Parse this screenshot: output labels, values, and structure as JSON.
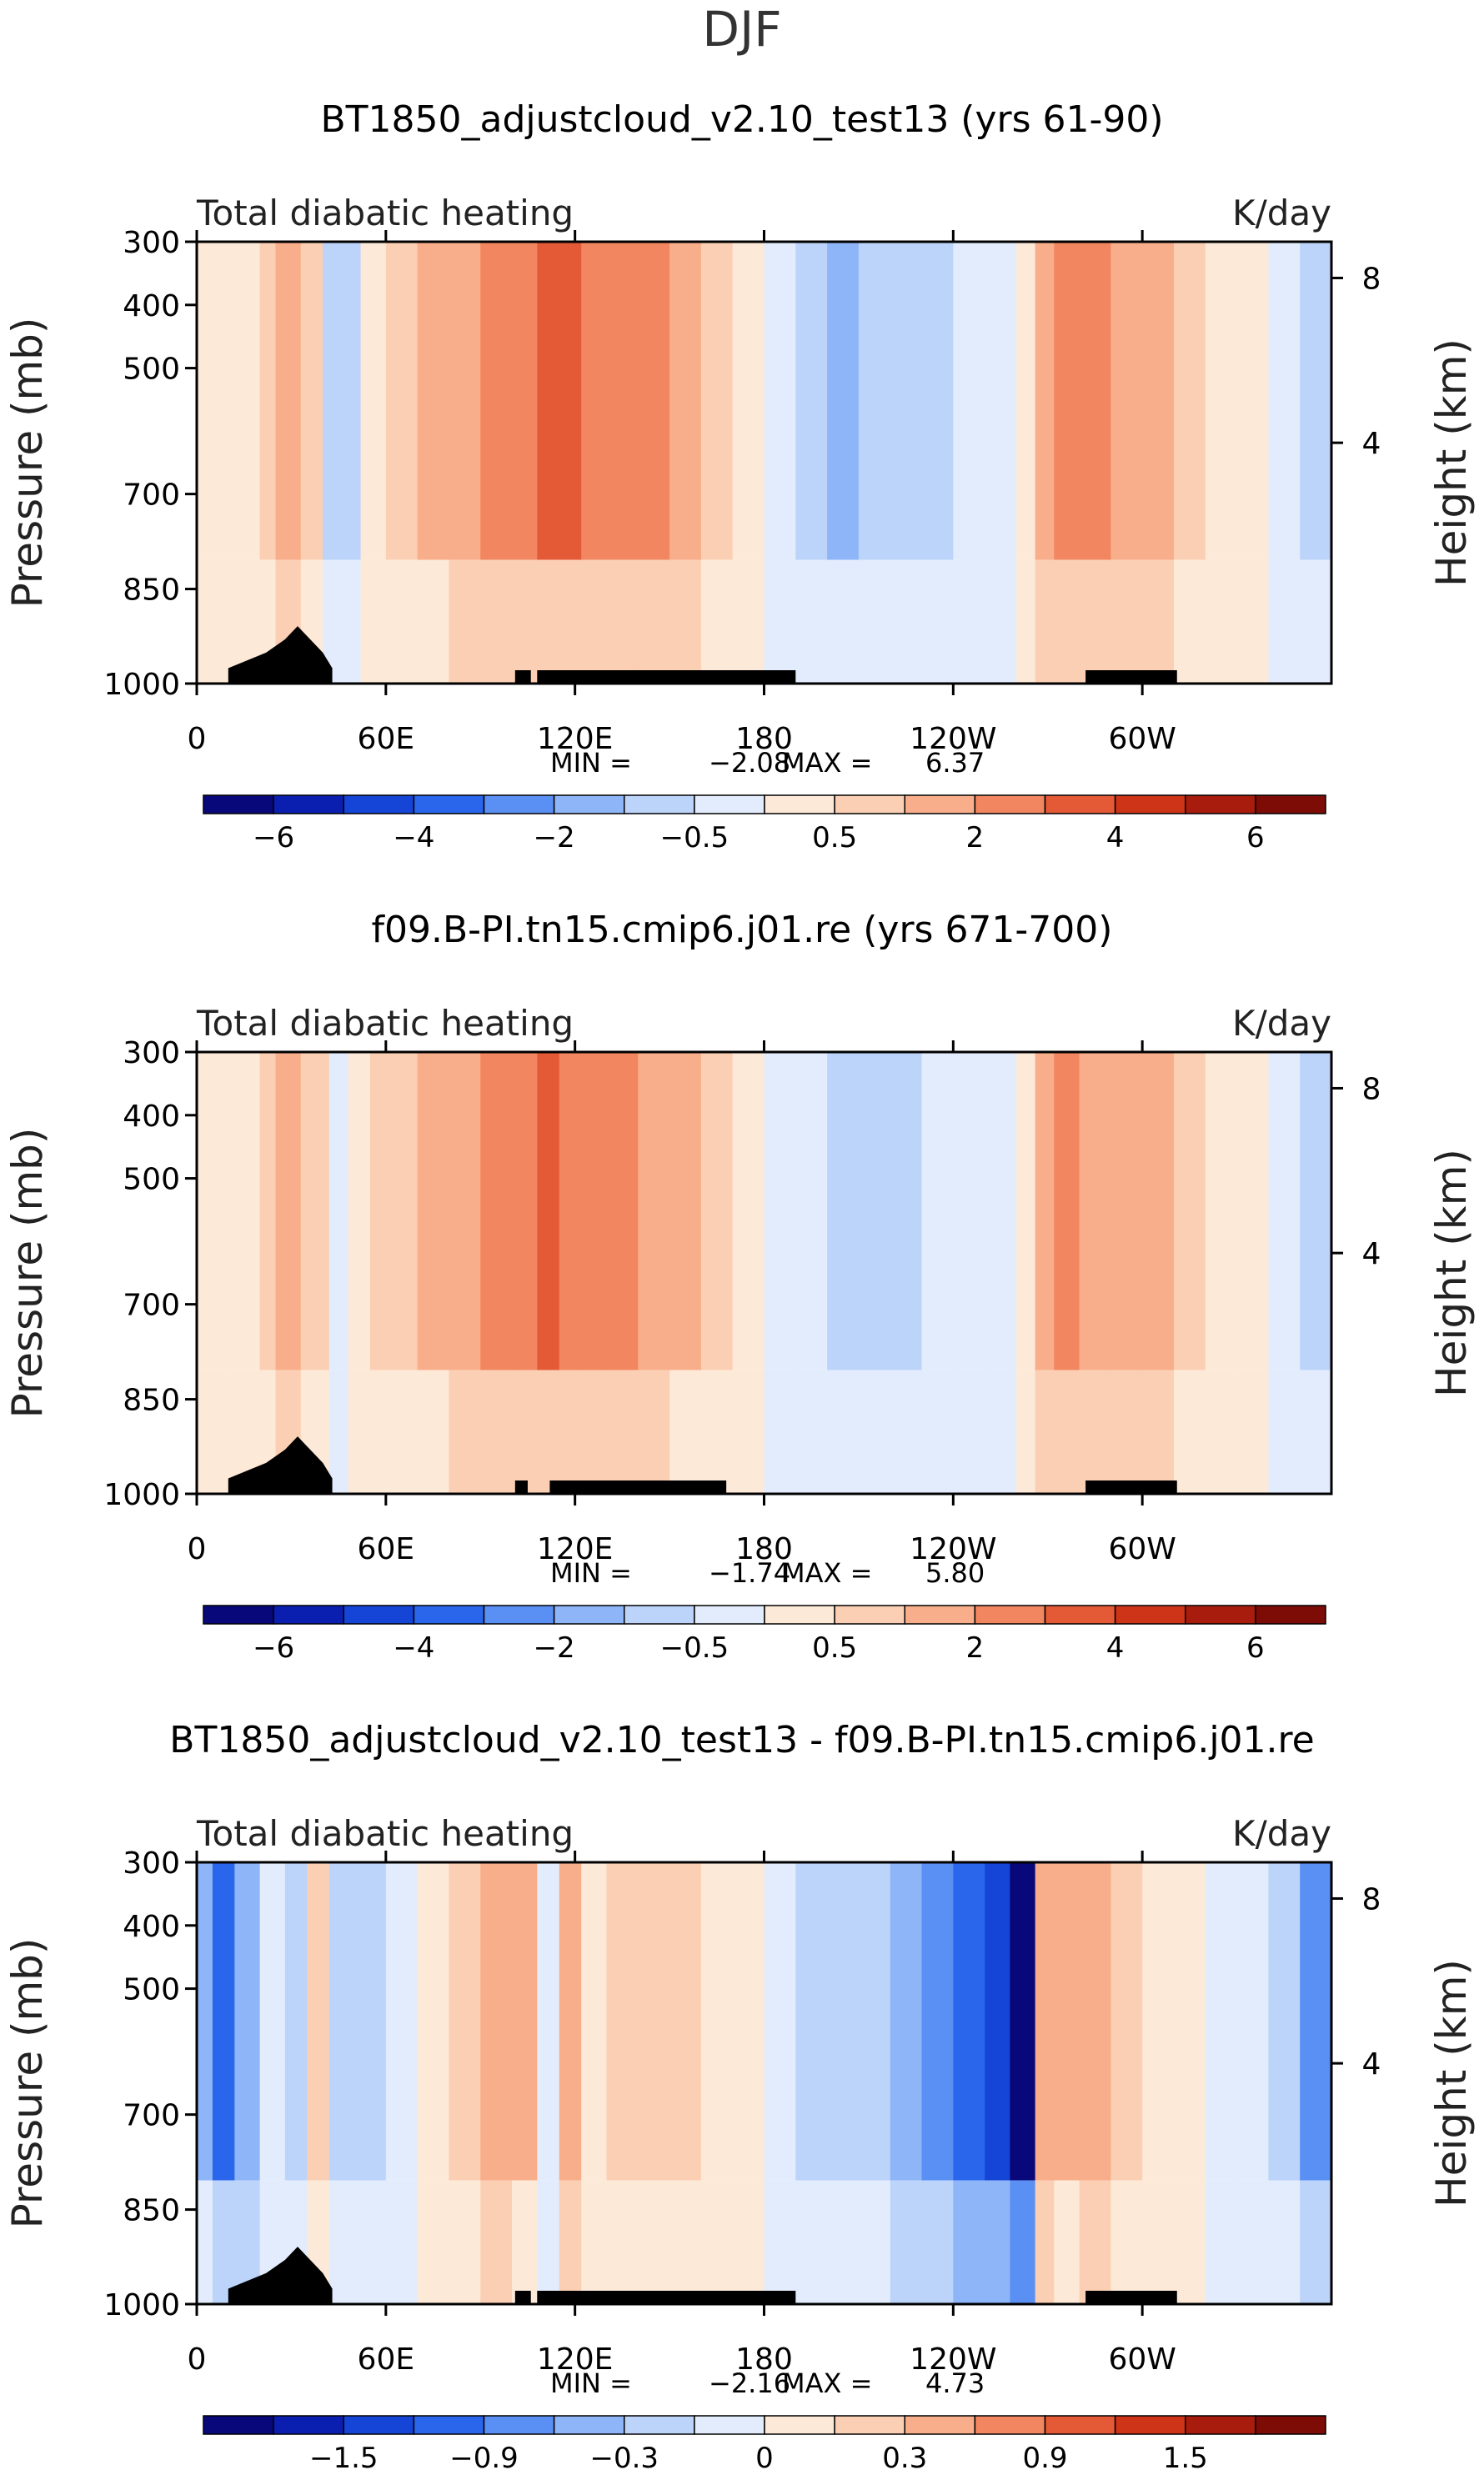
{
  "figure": {
    "season": "DJF"
  },
  "chart_data": [
    {
      "type": "heatmap",
      "title": "BT1850_adjustcloud_v2.10_test13 (yrs 61-90)",
      "subtitle_left": "Total diabatic heating",
      "subtitle_right": "K/day",
      "ylabel": "Pressure (mb)",
      "ylabel_right": "Height (km)",
      "x_ticks": [
        "0",
        "60E",
        "120E",
        "180",
        "120W",
        "60W"
      ],
      "y_ticks": [
        "300",
        "400",
        "500",
        "700",
        "850",
        "1000"
      ],
      "y_ticks_right": [
        "8",
        "4"
      ],
      "stats": {
        "min_label": "MIN =",
        "min": "−2.08",
        "max_label": "MAX =",
        "max": "6.37"
      },
      "colorbar_labels": [
        "−6",
        "−4",
        "−2",
        "−0.5",
        "0.5",
        "2",
        "4",
        "6"
      ],
      "colorbar_colors": [
        "#08087a",
        "#0a1fb0",
        "#1545d6",
        "#2a66ec",
        "#5a8ff4",
        "#8eb5f7",
        "#bcd4fa",
        "#e2ecfc",
        "#fde9d8",
        "#fbcfb3",
        "#f8ae8a",
        "#f18660",
        "#e55a36",
        "#cd3418",
        "#a81c0d",
        "#7d0c06"
      ],
      "field": [
        [
          0.0,
          0.3
        ],
        [
          10,
          0.6
        ],
        [
          20,
          1.2
        ],
        [
          25,
          2.0
        ],
        [
          33,
          1.5
        ],
        [
          37,
          1.0
        ],
        [
          40,
          -1.0
        ],
        [
          45,
          -1.5
        ],
        [
          52,
          0.4
        ],
        [
          60,
          1.3
        ],
        [
          70,
          1.9
        ],
        [
          80,
          2.6
        ],
        [
          90,
          3.2
        ],
        [
          100,
          3.4
        ],
        [
          108,
          3.7
        ],
        [
          115,
          3.6
        ],
        [
          122,
          3.4
        ],
        [
          130,
          3.0
        ],
        [
          140,
          2.7
        ],
        [
          150,
          2.0
        ],
        [
          160,
          1.1
        ],
        [
          170,
          0.2
        ],
        [
          180,
          -0.8
        ],
        [
          190,
          -1.5
        ],
        [
          200,
          -1.8
        ],
        [
          210,
          -1.7
        ],
        [
          220,
          -1.4
        ],
        [
          230,
          -1.1
        ],
        [
          240,
          -0.7
        ],
        [
          250,
          -0.3
        ],
        [
          260,
          0.4
        ],
        [
          266,
          2.6
        ],
        [
          272,
          3.2
        ],
        [
          280,
          2.7
        ],
        [
          290,
          2.1
        ],
        [
          300,
          2.4
        ],
        [
          310,
          1.3
        ],
        [
          320,
          0.7
        ],
        [
          330,
          0.5
        ],
        [
          340,
          -0.4
        ],
        [
          350,
          -1.3
        ],
        [
          360,
          0.0
        ]
      ]
    },
    {
      "type": "heatmap",
      "title": "f09.B-PI.tn15.cmip6.j01.re (yrs 671-700)",
      "subtitle_left": "Total diabatic heating",
      "subtitle_right": "K/day",
      "ylabel": "Pressure (mb)",
      "ylabel_right": "Height (km)",
      "x_ticks": [
        "0",
        "60E",
        "120E",
        "180",
        "120W",
        "60W"
      ],
      "y_ticks": [
        "300",
        "400",
        "500",
        "700",
        "850",
        "1000"
      ],
      "y_ticks_right": [
        "8",
        "4"
      ],
      "stats": {
        "min_label": "MIN =",
        "min": "−1.74",
        "max_label": "MAX =",
        "max": "5.80"
      },
      "colorbar_labels": [
        "−6",
        "−4",
        "−2",
        "−0.5",
        "0.5",
        "2",
        "4",
        "6"
      ],
      "colorbar_colors": [
        "#08087a",
        "#0a1fb0",
        "#1545d6",
        "#2a66ec",
        "#5a8ff4",
        "#8eb5f7",
        "#bcd4fa",
        "#e2ecfc",
        "#fde9d8",
        "#fbcfb3",
        "#f8ae8a",
        "#f18660",
        "#e55a36",
        "#cd3418",
        "#a81c0d",
        "#7d0c06"
      ],
      "field": [
        [
          0.0,
          0.4
        ],
        [
          10,
          0.8
        ],
        [
          20,
          1.4
        ],
        [
          25,
          2.0
        ],
        [
          33,
          1.6
        ],
        [
          37,
          1.2
        ],
        [
          42,
          -0.3
        ],
        [
          48,
          0.3
        ],
        [
          55,
          1.0
        ],
        [
          60,
          1.4
        ],
        [
          70,
          1.8
        ],
        [
          80,
          2.4
        ],
        [
          90,
          3.0
        ],
        [
          100,
          3.3
        ],
        [
          108,
          3.6
        ],
        [
          115,
          3.4
        ],
        [
          122,
          3.2
        ],
        [
          130,
          3.0
        ],
        [
          140,
          2.5
        ],
        [
          150,
          1.8
        ],
        [
          160,
          1.0
        ],
        [
          170,
          0.3
        ],
        [
          180,
          -0.3
        ],
        [
          190,
          -0.8
        ],
        [
          200,
          -1.0
        ],
        [
          210,
          -1.2
        ],
        [
          220,
          -1.1
        ],
        [
          230,
          -0.8
        ],
        [
          240,
          -0.5
        ],
        [
          250,
          -0.2
        ],
        [
          260,
          0.3
        ],
        [
          266,
          2.4
        ],
        [
          272,
          3.0
        ],
        [
          280,
          2.6
        ],
        [
          290,
          2.0
        ],
        [
          300,
          2.2
        ],
        [
          310,
          1.4
        ],
        [
          320,
          0.8
        ],
        [
          330,
          0.4
        ],
        [
          340,
          -0.3
        ],
        [
          350,
          -0.9
        ],
        [
          360,
          0.0
        ]
      ]
    },
    {
      "type": "heatmap",
      "title": "BT1850_adjustcloud_v2.10_test13 - f09.B-PI.tn15.cmip6.j01.re",
      "subtitle_left": "Total diabatic heating",
      "subtitle_right": "K/day",
      "ylabel": "Pressure (mb)",
      "ylabel_right": "Height (km)",
      "x_ticks": [
        "0",
        "60E",
        "120E",
        "180",
        "120W",
        "60W"
      ],
      "y_ticks": [
        "300",
        "400",
        "500",
        "700",
        "850",
        "1000"
      ],
      "y_ticks_right": [
        "8",
        "4"
      ],
      "stats": {
        "min_label": "MIN =",
        "min": "−2.16",
        "max_label": "MAX =",
        "max": "4.73"
      },
      "colorbar_labels": [
        "−1.5",
        "−0.9",
        "−0.3",
        "0",
        "0.3",
        "0.9",
        "1.5"
      ],
      "colorbar_colors": [
        "#08087a",
        "#0a1fb0",
        "#1545d6",
        "#2a66ec",
        "#5a8ff4",
        "#8eb5f7",
        "#bcd4fa",
        "#e2ecfc",
        "#fde9d8",
        "#fbcfb3",
        "#f8ae8a",
        "#f18660",
        "#e55a36",
        "#cd3418",
        "#a81c0d",
        "#7d0c06"
      ],
      "field": [
        [
          0.0,
          -0.6
        ],
        [
          5,
          -1.2
        ],
        [
          12,
          -0.8
        ],
        [
          20,
          -0.2
        ],
        [
          28,
          -0.5
        ],
        [
          35,
          0.3
        ],
        [
          42,
          -0.4
        ],
        [
          50,
          -0.3
        ],
        [
          60,
          -0.1
        ],
        [
          70,
          0.2
        ],
        [
          80,
          0.4
        ],
        [
          90,
          0.7
        ],
        [
          100,
          0.6
        ],
        [
          108,
          -0.2
        ],
        [
          115,
          0.7
        ],
        [
          122,
          0.2
        ],
        [
          130,
          0.5
        ],
        [
          140,
          0.4
        ],
        [
          150,
          0.5
        ],
        [
          160,
          0.2
        ],
        [
          170,
          0.0
        ],
        [
          180,
          -0.2
        ],
        [
          190,
          -0.3
        ],
        [
          200,
          -0.4
        ],
        [
          210,
          -0.5
        ],
        [
          220,
          -0.7
        ],
        [
          230,
          -1.0
        ],
        [
          240,
          -1.3
        ],
        [
          250,
          -1.6
        ],
        [
          258,
          -2.0
        ],
        [
          266,
          0.8
        ],
        [
          272,
          0.6
        ],
        [
          280,
          0.7
        ],
        [
          290,
          0.5
        ],
        [
          300,
          0.2
        ],
        [
          310,
          0.0
        ],
        [
          320,
          -0.1
        ],
        [
          330,
          -0.2
        ],
        [
          340,
          -0.4
        ],
        [
          350,
          -1.0
        ],
        [
          360,
          -0.6
        ]
      ]
    }
  ]
}
